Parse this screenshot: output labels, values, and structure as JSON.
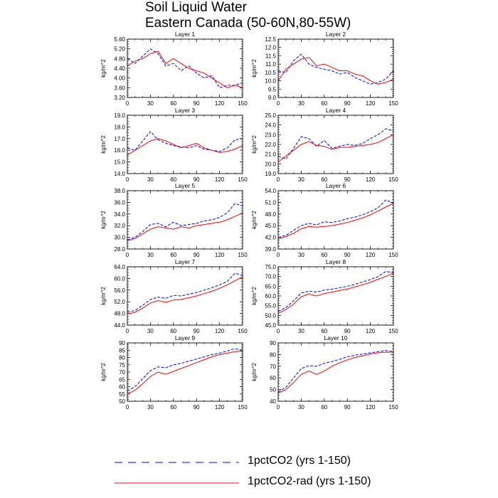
{
  "figure": {
    "title_lines": [
      "Soil Liquid Water",
      "Eastern Canada (50-60N,80-55W)"
    ],
    "legend": [
      {
        "label": "1pctCO2 (yrs 1-150)",
        "color": "#0000ff",
        "style": "dashed"
      },
      {
        "label": "1pctCO2-rad (yrs 1-150)",
        "color": "#ff0000",
        "style": "solid"
      }
    ]
  },
  "chart_data": [
    {
      "type": "line",
      "title": "Layer 1",
      "ylabel": "kg/m^2",
      "xlim": [
        0,
        150
      ],
      "ylim": [
        3.2,
        5.6
      ],
      "xticks": [
        "0",
        "30",
        "60",
        "90",
        "120",
        "150"
      ],
      "yticks": [
        "3.20",
        "3.60",
        "4.00",
        "4.40",
        "4.80",
        "5.20",
        "5.60"
      ],
      "x": [
        0,
        10,
        20,
        30,
        40,
        50,
        60,
        70,
        80,
        90,
        100,
        110,
        120,
        130,
        140,
        150
      ],
      "series": [
        {
          "name": "1pctCO2 (yrs 1-150)",
          "values": [
            4.8,
            4.6,
            4.9,
            5.2,
            5.0,
            4.5,
            4.6,
            4.3,
            4.5,
            4.2,
            4.0,
            4.1,
            3.6,
            3.7,
            3.7,
            3.8
          ]
        },
        {
          "name": "1pctCO2-rad (yrs 1-150)",
          "values": [
            4.5,
            4.7,
            4.8,
            5.0,
            5.1,
            4.6,
            4.8,
            4.6,
            4.4,
            4.3,
            4.2,
            4.0,
            3.8,
            3.6,
            3.7,
            3.6
          ]
        }
      ]
    },
    {
      "type": "line",
      "title": "Layer 2",
      "ylabel": "kg/m^2",
      "xlim": [
        0,
        150
      ],
      "ylim": [
        9.0,
        12.5
      ],
      "xticks": [
        "0",
        "30",
        "60",
        "90",
        "120",
        "150"
      ],
      "yticks": [
        "9.0",
        "9.5",
        "10.0",
        "10.5",
        "11.0",
        "11.5",
        "12.0",
        "12.5"
      ],
      "x": [
        0,
        10,
        20,
        30,
        40,
        50,
        60,
        70,
        80,
        90,
        100,
        110,
        120,
        130,
        140,
        150
      ],
      "series": [
        {
          "name": "1pctCO2 (yrs 1-150)",
          "values": [
            10.6,
            10.5,
            11.2,
            11.6,
            11.0,
            10.8,
            10.7,
            10.6,
            10.4,
            10.5,
            10.2,
            10.0,
            9.8,
            9.9,
            10.1,
            10.6
          ]
        },
        {
          "name": "1pctCO2-rad (yrs 1-150)",
          "values": [
            10.0,
            10.7,
            11.0,
            11.3,
            11.4,
            10.9,
            11.0,
            10.8,
            10.6,
            10.6,
            10.4,
            10.3,
            10.0,
            9.8,
            9.9,
            10.1
          ]
        }
      ]
    },
    {
      "type": "line",
      "title": "Layer 3",
      "ylabel": "kg/m^2",
      "xlim": [
        0,
        150
      ],
      "ylim": [
        14.0,
        19.0
      ],
      "xticks": [
        "0",
        "30",
        "60",
        "90",
        "120",
        "150"
      ],
      "yticks": [
        "14.0",
        "15.0",
        "16.0",
        "17.0",
        "18.0",
        "19.0"
      ],
      "x": [
        0,
        10,
        20,
        30,
        40,
        50,
        60,
        70,
        80,
        90,
        100,
        110,
        120,
        130,
        140,
        150
      ],
      "series": [
        {
          "name": "1pctCO2 (yrs 1-150)",
          "values": [
            16.2,
            16.0,
            16.8,
            17.6,
            16.9,
            16.6,
            16.4,
            16.3,
            16.2,
            16.4,
            16.1,
            16.0,
            15.9,
            16.2,
            16.9,
            17.0
          ]
        },
        {
          "name": "1pctCO2-rad (yrs 1-150)",
          "values": [
            15.6,
            16.0,
            16.4,
            16.8,
            17.0,
            16.8,
            16.5,
            16.2,
            16.4,
            16.6,
            16.2,
            16.0,
            15.8,
            15.9,
            16.1,
            16.4
          ]
        }
      ]
    },
    {
      "type": "line",
      "title": "Layer 4",
      "ylabel": "kg/m^2",
      "xlim": [
        0,
        150
      ],
      "ylim": [
        19.0,
        25.0
      ],
      "xticks": [
        "0",
        "30",
        "60",
        "90",
        "120",
        "150"
      ],
      "yticks": [
        "19.0",
        "20.0",
        "21.0",
        "22.0",
        "23.0",
        "24.0",
        "25.0"
      ],
      "x": [
        0,
        10,
        20,
        30,
        40,
        50,
        60,
        70,
        80,
        90,
        100,
        110,
        120,
        130,
        140,
        150
      ],
      "series": [
        {
          "name": "1pctCO2 (yrs 1-150)",
          "values": [
            20.8,
            20.5,
            21.6,
            22.8,
            22.6,
            21.8,
            22.4,
            21.6,
            21.8,
            22.0,
            21.9,
            22.1,
            22.6,
            23.0,
            23.6,
            23.4
          ]
        },
        {
          "name": "1pctCO2-rad (yrs 1-150)",
          "values": [
            20.2,
            20.8,
            21.4,
            22.0,
            22.3,
            21.9,
            21.8,
            21.5,
            21.7,
            21.7,
            21.8,
            21.9,
            22.0,
            22.2,
            22.6,
            23.0
          ]
        }
      ]
    },
    {
      "type": "line",
      "title": "Layer 5",
      "ylabel": "kg/m^2",
      "xlim": [
        0,
        150
      ],
      "ylim": [
        28.0,
        38.0
      ],
      "xticks": [
        "0",
        "30",
        "60",
        "90",
        "120",
        "150"
      ],
      "yticks": [
        "28.0",
        "30.0",
        "32.0",
        "34.0",
        "36.0",
        "38.0"
      ],
      "x": [
        0,
        10,
        20,
        30,
        40,
        50,
        60,
        70,
        80,
        90,
        100,
        110,
        120,
        130,
        140,
        150
      ],
      "series": [
        {
          "name": "1pctCO2 (yrs 1-150)",
          "values": [
            29.6,
            30.0,
            31.0,
            32.2,
            32.4,
            31.8,
            32.6,
            32.0,
            32.2,
            32.4,
            32.8,
            33.0,
            33.4,
            34.2,
            35.8,
            35.4
          ]
        },
        {
          "name": "1pctCO2-rad (yrs 1-150)",
          "values": [
            29.4,
            29.8,
            30.6,
            31.4,
            31.8,
            31.6,
            31.4,
            31.8,
            31.6,
            32.0,
            32.2,
            32.4,
            32.6,
            33.0,
            33.6,
            34.2
          ]
        }
      ]
    },
    {
      "type": "line",
      "title": "Layer 6",
      "ylabel": "kg/m^2",
      "xlim": [
        0,
        150
      ],
      "ylim": [
        39.0,
        54.0
      ],
      "xticks": [
        "0",
        "30",
        "60",
        "90",
        "120",
        "150"
      ],
      "yticks": [
        "39.0",
        "42.0",
        "45.0",
        "48.0",
        "51.0",
        "54.0"
      ],
      "x": [
        0,
        10,
        20,
        30,
        40,
        50,
        60,
        70,
        80,
        90,
        100,
        110,
        120,
        130,
        140,
        150
      ],
      "series": [
        {
          "name": "1pctCO2 (yrs 1-150)",
          "values": [
            42.0,
            42.5,
            43.8,
            45.0,
            45.6,
            45.2,
            46.0,
            45.8,
            46.2,
            46.8,
            47.2,
            47.8,
            48.6,
            49.6,
            51.6,
            50.8
          ]
        },
        {
          "name": "1pctCO2-rad (yrs 1-150)",
          "values": [
            41.6,
            42.2,
            43.0,
            44.2,
            44.8,
            44.6,
            44.8,
            45.0,
            45.4,
            45.8,
            46.4,
            47.0,
            47.8,
            48.8,
            49.8,
            50.8
          ]
        }
      ]
    },
    {
      "type": "line",
      "title": "Layer 7",
      "ylabel": "kg/m^2",
      "xlim": [
        0,
        150
      ],
      "ylim": [
        44.0,
        64.0
      ],
      "xticks": [
        "0",
        "30",
        "60",
        "90",
        "120",
        "150"
      ],
      "yticks": [
        "44.0",
        "48.0",
        "52.0",
        "56.0",
        "60.0",
        "64.0"
      ],
      "x": [
        0,
        10,
        20,
        30,
        40,
        50,
        60,
        70,
        80,
        90,
        100,
        110,
        120,
        130,
        140,
        150
      ],
      "series": [
        {
          "name": "1pctCO2 (yrs 1-150)",
          "values": [
            48.5,
            49.0,
            50.8,
            52.8,
            53.6,
            53.2,
            54.2,
            54.0,
            54.6,
            55.2,
            56.0,
            56.8,
            57.8,
            59.0,
            61.8,
            61.0
          ]
        },
        {
          "name": "1pctCO2-rad (yrs 1-150)",
          "values": [
            47.8,
            48.4,
            49.8,
            51.6,
            52.4,
            51.8,
            52.6,
            52.8,
            53.4,
            54.0,
            54.8,
            55.6,
            56.6,
            57.8,
            59.2,
            60.6
          ]
        }
      ]
    },
    {
      "type": "line",
      "title": "Layer 8",
      "ylabel": "kg/m^2",
      "xlim": [
        0,
        150
      ],
      "ylim": [
        45.0,
        75.0
      ],
      "xticks": [
        "0",
        "30",
        "60",
        "90",
        "120",
        "150"
      ],
      "yticks": [
        "45.0",
        "50.0",
        "55.0",
        "60.0",
        "65.0",
        "70.0",
        "75.0"
      ],
      "x": [
        0,
        10,
        20,
        30,
        40,
        50,
        60,
        70,
        80,
        90,
        100,
        110,
        120,
        130,
        140,
        150
      ],
      "series": [
        {
          "name": "1pctCO2 (yrs 1-150)",
          "values": [
            52.0,
            54.0,
            57.5,
            61.5,
            62.5,
            62.0,
            63.0,
            63.5,
            64.2,
            65.0,
            66.0,
            67.2,
            68.4,
            70.0,
            72.6,
            72.0
          ]
        },
        {
          "name": "1pctCO2-rad (yrs 1-150)",
          "values": [
            51.0,
            53.0,
            55.8,
            59.6,
            61.0,
            60.0,
            61.2,
            62.0,
            62.8,
            63.6,
            64.6,
            65.8,
            67.0,
            68.6,
            70.0,
            71.8
          ]
        }
      ]
    },
    {
      "type": "line",
      "title": "Layer 9",
      "ylabel": "kg/m^2",
      "xlim": [
        0,
        150
      ],
      "ylim": [
        50,
        90
      ],
      "xticks": [
        "0",
        "30",
        "60",
        "90",
        "120",
        "150"
      ],
      "yticks": [
        "50",
        "55",
        "60",
        "65",
        "70",
        "75",
        "80",
        "85",
        "90"
      ],
      "x": [
        0,
        10,
        20,
        30,
        40,
        50,
        60,
        70,
        80,
        90,
        100,
        110,
        120,
        130,
        140,
        150
      ],
      "series": [
        {
          "name": "1pctCO2 (yrs 1-150)",
          "values": [
            57.0,
            60.0,
            65.5,
            71.0,
            73.5,
            73.0,
            75.0,
            76.0,
            77.5,
            79.0,
            80.5,
            82.0,
            83.0,
            84.5,
            86.0,
            85.0
          ]
        },
        {
          "name": "1pctCO2-rad (yrs 1-150)",
          "values": [
            55.0,
            57.5,
            62.0,
            67.0,
            70.0,
            68.5,
            70.5,
            72.5,
            74.5,
            76.5,
            78.5,
            80.5,
            82.0,
            83.0,
            84.0,
            84.5
          ]
        }
      ]
    },
    {
      "type": "line",
      "title": "Layer 10",
      "ylabel": "kg/m^2",
      "xlim": [
        0,
        150
      ],
      "ylim": [
        40,
        90
      ],
      "xticks": [
        "0",
        "30",
        "60",
        "90",
        "120",
        "150"
      ],
      "yticks": [
        "40",
        "50",
        "60",
        "70",
        "80",
        "90"
      ],
      "x": [
        0,
        10,
        20,
        30,
        40,
        50,
        60,
        70,
        80,
        90,
        100,
        110,
        120,
        130,
        140,
        150
      ],
      "series": [
        {
          "name": "1pctCO2 (yrs 1-150)",
          "values": [
            48.0,
            52.0,
            60.0,
            68.0,
            70.5,
            70.0,
            72.5,
            74.0,
            76.0,
            78.0,
            79.5,
            80.5,
            81.5,
            82.5,
            83.5,
            82.5
          ]
        },
        {
          "name": "1pctCO2-rad (yrs 1-150)",
          "values": [
            47.0,
            50.0,
            56.0,
            63.0,
            66.0,
            63.0,
            66.0,
            70.0,
            73.0,
            75.5,
            77.5,
            79.0,
            80.5,
            81.5,
            82.0,
            82.0
          ]
        }
      ]
    }
  ]
}
